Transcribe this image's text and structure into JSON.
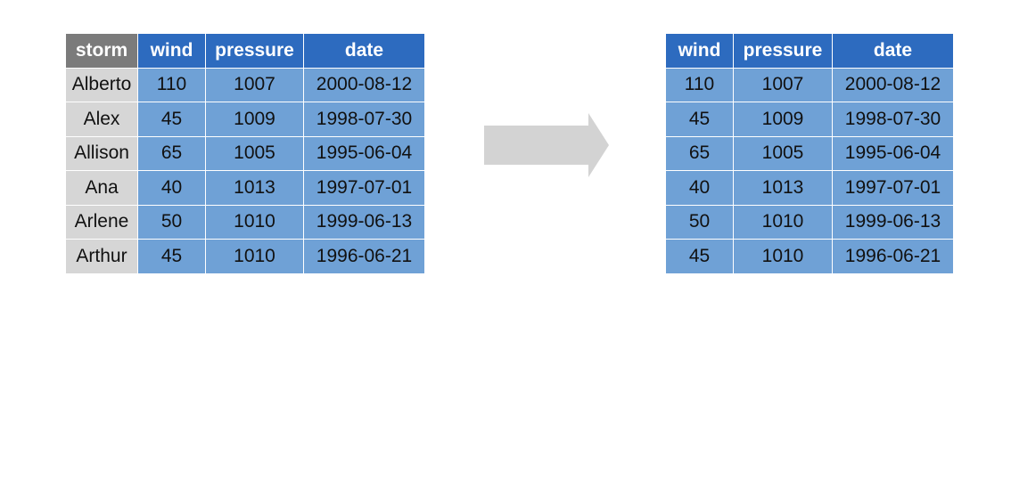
{
  "source_table": {
    "headers": [
      "storm",
      "wind",
      "pressure",
      "date"
    ],
    "rows": [
      [
        "Alberto",
        "110",
        "1007",
        "2000-08-12"
      ],
      [
        "Alex",
        "45",
        "1009",
        "1998-07-30"
      ],
      [
        "Allison",
        "65",
        "1005",
        "1995-06-04"
      ],
      [
        "Ana",
        "40",
        "1013",
        "1997-07-01"
      ],
      [
        "Arlene",
        "50",
        "1010",
        "1999-06-13"
      ],
      [
        "Arthur",
        "45",
        "1010",
        "1996-06-21"
      ]
    ]
  },
  "result_table": {
    "headers": [
      "wind",
      "pressure",
      "date"
    ],
    "rows": [
      [
        "110",
        "1007",
        "2000-08-12"
      ],
      [
        "45",
        "1009",
        "1998-07-30"
      ],
      [
        "65",
        "1005",
        "1995-06-04"
      ],
      [
        "40",
        "1013",
        "1997-07-01"
      ],
      [
        "50",
        "1010",
        "1999-06-13"
      ],
      [
        "45",
        "1010",
        "1996-06-21"
      ]
    ]
  },
  "colors": {
    "highlight_header": "#7b7b7b",
    "highlight_cell": "#d6d6d6",
    "blue_header": "#2d6bbf",
    "blue_cell": "#6fa1d6",
    "arrow": "#d3d3d3"
  }
}
